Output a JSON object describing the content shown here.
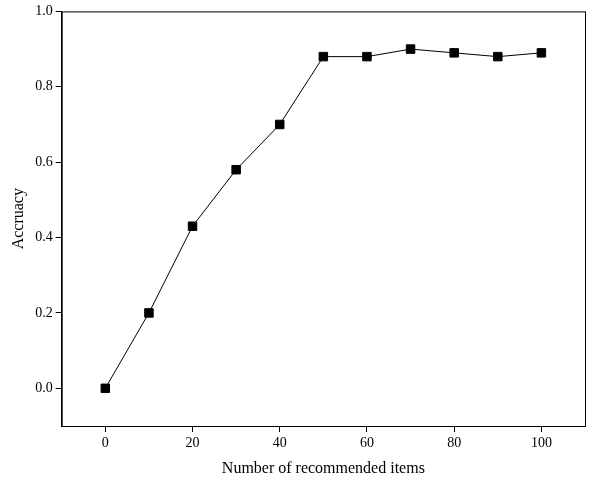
{
  "chart_data": {
    "type": "line",
    "x_label": "Number of recommended items",
    "y_label": "Accruacy",
    "x": [
      0,
      10,
      20,
      30,
      40,
      50,
      60,
      70,
      80,
      90,
      100
    ],
    "values": [
      0,
      0.2,
      0.43,
      0.58,
      0.7,
      0.88,
      0.88,
      0.9,
      0.89,
      0.88,
      0.89
    ],
    "color": "#000000",
    "marker": "square",
    "line_style": "solid",
    "xlim": [
      -10,
      110
    ],
    "xticks": [
      0,
      20,
      40,
      60,
      80,
      100
    ],
    "ylim": [
      -0.1,
      1.0
    ],
    "yticks": [
      {
        "value": 0,
        "label": "0.0"
      },
      0.2,
      0.4,
      0.6,
      0.8,
      {
        "value": 1,
        "label": "1.0"
      }
    ],
    "grid": false
  }
}
